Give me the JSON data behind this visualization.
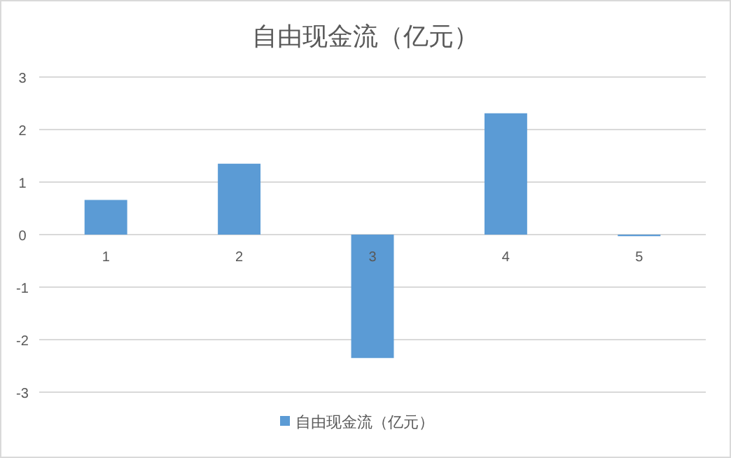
{
  "chart_data": {
    "type": "bar",
    "title": "自由现金流（亿元）",
    "categories": [
      "1",
      "2",
      "3",
      "4",
      "5"
    ],
    "series": [
      {
        "name": "自由现金流（亿元）",
        "color": "#5b9bd5",
        "values": [
          0.66,
          1.35,
          -2.35,
          2.31,
          -0.03
        ]
      }
    ],
    "ylim": [
      -3,
      3
    ],
    "yticks": [
      -3,
      -2,
      -1,
      0,
      1,
      2,
      3
    ],
    "grid": "y",
    "legend": "bottom"
  }
}
